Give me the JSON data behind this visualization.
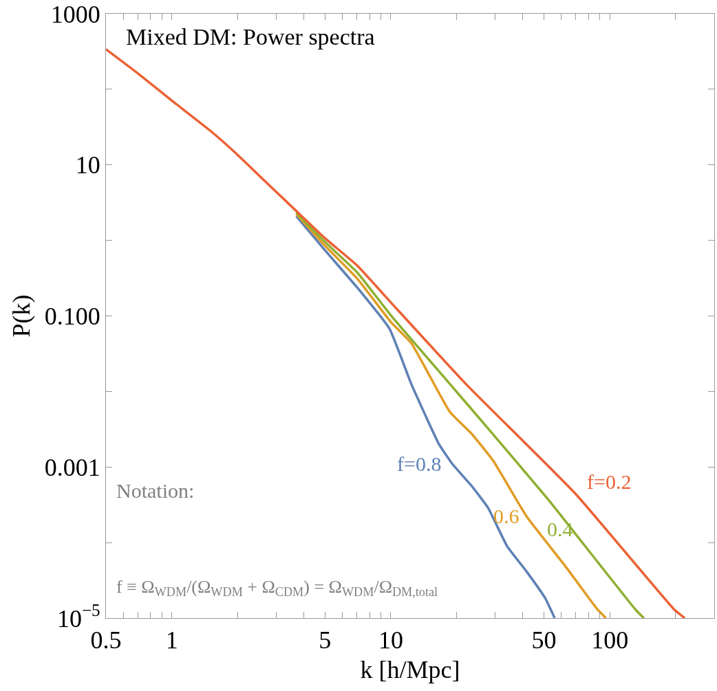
{
  "chart_data": {
    "type": "line",
    "title": "Mixed DM: Power spectra",
    "xlabel": "k [h/Mpc]",
    "ylabel": "P(k)",
    "log": "xy",
    "grid": false,
    "legend": false,
    "line_style": "solid",
    "marker": "none",
    "xlim": [
      0.5,
      300
    ],
    "ylim": [
      1e-05,
      1000
    ],
    "xticks": [
      0.5,
      {
        "value": 0.6,
        "label": null
      },
      {
        "value": 0.7,
        "label": null
      },
      {
        "value": 0.8,
        "label": null
      },
      {
        "value": 0.9,
        "label": null
      },
      1,
      {
        "value": 2,
        "label": null
      },
      {
        "value": 3,
        "label": null
      },
      {
        "value": 4,
        "label": null
      },
      5,
      {
        "value": 6,
        "label": null
      },
      {
        "value": 7,
        "label": null
      },
      {
        "value": 8,
        "label": null
      },
      {
        "value": 9,
        "label": null
      },
      10,
      {
        "value": 20,
        "label": null
      },
      {
        "value": 30,
        "label": null
      },
      {
        "value": 40,
        "label": null
      },
      50,
      {
        "value": 60,
        "label": null
      },
      {
        "value": 70,
        "label": null
      },
      {
        "value": 80,
        "label": null
      },
      {
        "value": 90,
        "label": null
      },
      100,
      {
        "value": 200,
        "label": null
      }
    ],
    "yticks": [
      {
        "value": 1e-05,
        "label": "10$^{−5}$"
      },
      {
        "value": 0.0001,
        "label": null
      },
      0.001,
      {
        "value": 0.01,
        "label": null
      },
      {
        "value": 0.1,
        "label": "0.100"
      },
      {
        "value": 1,
        "label": null
      },
      10,
      {
        "value": 100,
        "label": null
      },
      1000
    ],
    "series": [
      {
        "name": "f=0.8",
        "color": "#5e81b5",
        "x": [
          3.7,
          5,
          7,
          9.86,
          12.4,
          16.6,
          19.1,
          23.4,
          27.8,
          34,
          41.6,
          50.8,
          56
        ],
        "values": [
          2.09,
          0.741,
          0.24,
          0.0676,
          0.0126,
          0.002,
          0.0011,
          0.000562,
          0.000288,
          8.91e-05,
          4.17e-05,
          1.82e-05,
          1e-05
        ]
      },
      {
        "name": "0.6",
        "color": "#e19c24",
        "x": [
          3.7,
          5,
          7,
          10,
          12.4,
          18.6,
          23.4,
          29.4,
          41.6,
          62.2,
          87.9,
          96
        ],
        "values": [
          2.24,
          0.851,
          0.316,
          0.0832,
          0.0437,
          0.00537,
          0.00275,
          0.0012,
          0.000224,
          5.01e-05,
          1.3e-05,
          1e-05
        ]
      },
      {
        "name": "0.4",
        "color": "#8fb032",
        "x": [
          3.7,
          5,
          7,
          10,
          18.6,
          27.8,
          52.3,
          131,
          143
        ],
        "values": [
          2.34,
          0.955,
          0.38,
          0.102,
          0.0126,
          0.00324,
          0.000372,
          1.3e-05,
          1e-05
        ]
      },
      {
        "name": "f=0.2",
        "color": "#eb6235",
        "x": [
          0.5,
          0.7,
          1,
          1.5,
          2,
          2.5,
          3,
          3.7,
          5,
          7,
          10,
          22,
          70,
          197,
          220
        ],
        "values": [
          339,
          162,
          70.8,
          28.2,
          13.5,
          7.24,
          4.37,
          2.45,
          1.07,
          0.468,
          0.151,
          0.0126,
          0.000437,
          1.3e-05,
          1e-05
        ]
      }
    ],
    "annotations": [
      "Notation:",
      "f ≡ Ω$_{WDM}$/(Ω$_{WDM}$ + Ω$_{CDM}$) = Ω$_{WDM}$/Ω$_{DM,total}$"
    ]
  }
}
